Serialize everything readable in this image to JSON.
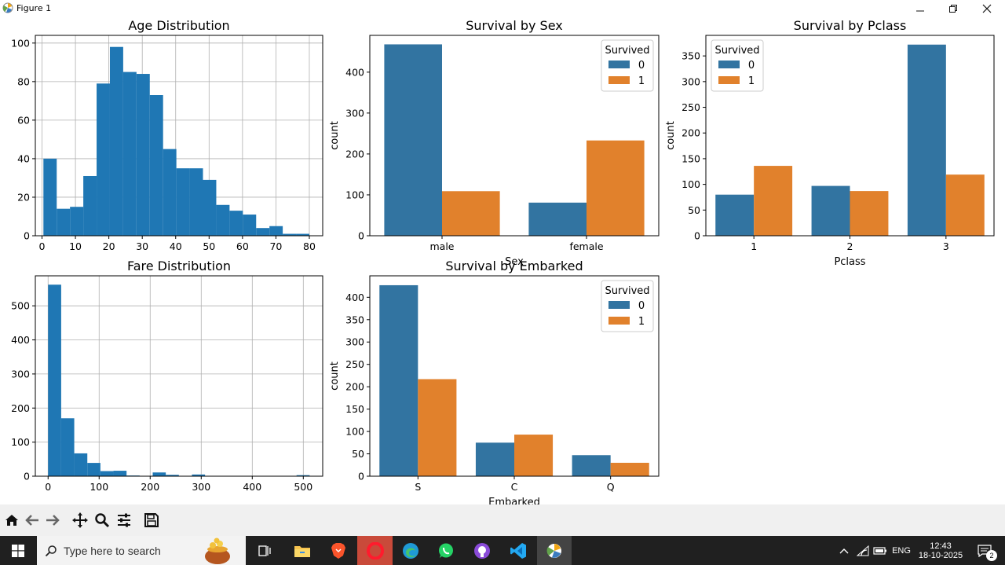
{
  "window": {
    "title": "Figure 1"
  },
  "charts": [
    {
      "type": "histogram",
      "title": "Age Distribution",
      "xlabel": "",
      "ylabel": "",
      "xlim": [
        -2,
        84
      ],
      "ylim": [
        0,
        104
      ],
      "xticks": [
        0,
        10,
        20,
        30,
        40,
        50,
        60,
        70,
        80
      ],
      "yticks": [
        0,
        20,
        40,
        60,
        80,
        100
      ],
      "bins": {
        "start": 0.42,
        "width": 3.979,
        "counts": [
          40,
          14,
          15,
          31,
          79,
          98,
          85,
          84,
          73,
          45,
          35,
          35,
          29,
          16,
          13,
          11,
          4,
          5,
          1,
          1
        ]
      }
    },
    {
      "type": "bar",
      "title": "Survival by Sex",
      "xlabel": "Sex",
      "ylabel": "count",
      "ylim": [
        0,
        490
      ],
      "categories": [
        "male",
        "female"
      ],
      "yticks": [
        0,
        100,
        200,
        300,
        400
      ],
      "legend": {
        "title": "Survived",
        "position": "top-right"
      },
      "series": [
        {
          "name": "0",
          "values": [
            468,
            81
          ],
          "color": "#3274a1"
        },
        {
          "name": "1",
          "values": [
            109,
            233
          ],
          "color": "#e1812c"
        }
      ]
    },
    {
      "type": "bar",
      "title": "Survival by Pclass",
      "xlabel": "Pclass",
      "ylabel": "count",
      "ylim": [
        0,
        390
      ],
      "categories": [
        "1",
        "2",
        "3"
      ],
      "yticks": [
        0,
        50,
        100,
        150,
        200,
        250,
        300,
        350
      ],
      "legend": {
        "title": "Survived",
        "position": "top-left"
      },
      "series": [
        {
          "name": "0",
          "values": [
            80,
            97,
            372
          ],
          "color": "#3274a1"
        },
        {
          "name": "1",
          "values": [
            136,
            87,
            119
          ],
          "color": "#e1812c"
        }
      ]
    },
    {
      "type": "histogram",
      "title": "Fare Distribution",
      "xlabel": "",
      "ylabel": "",
      "xlim": [
        -25,
        538
      ],
      "ylim": [
        0,
        588
      ],
      "xticks": [
        0,
        100,
        200,
        300,
        400,
        500
      ],
      "yticks": [
        0,
        100,
        200,
        300,
        400,
        500
      ],
      "bins": {
        "start": 0,
        "width": 25.62,
        "counts": [
          562,
          170,
          67,
          39,
          15,
          16,
          2,
          0,
          11,
          4,
          0,
          5,
          0,
          0,
          0,
          0,
          0,
          0,
          0,
          3
        ]
      }
    },
    {
      "type": "bar",
      "title": "Survival by Embarked",
      "xlabel": "Embarked",
      "ylabel": "count",
      "ylim": [
        0,
        448
      ],
      "categories": [
        "S",
        "C",
        "Q"
      ],
      "yticks": [
        0,
        50,
        100,
        150,
        200,
        250,
        300,
        350,
        400
      ],
      "legend": {
        "title": "Survived",
        "position": "top-right"
      },
      "series": [
        {
          "name": "0",
          "values": [
            427,
            75,
            47
          ],
          "color": "#3274a1"
        },
        {
          "name": "1",
          "values": [
            217,
            93,
            30
          ],
          "color": "#e1812c"
        }
      ]
    }
  ],
  "toolbar": {
    "icons": [
      "home-icon",
      "back-icon",
      "forward-icon",
      "pan-icon",
      "zoom-icon",
      "configure-icon",
      "save-icon"
    ]
  },
  "taskbar": {
    "search_placeholder": "Type here to search",
    "lang": "ENG",
    "time": "12:43",
    "date": "18-10-2025",
    "notifications": "2"
  }
}
